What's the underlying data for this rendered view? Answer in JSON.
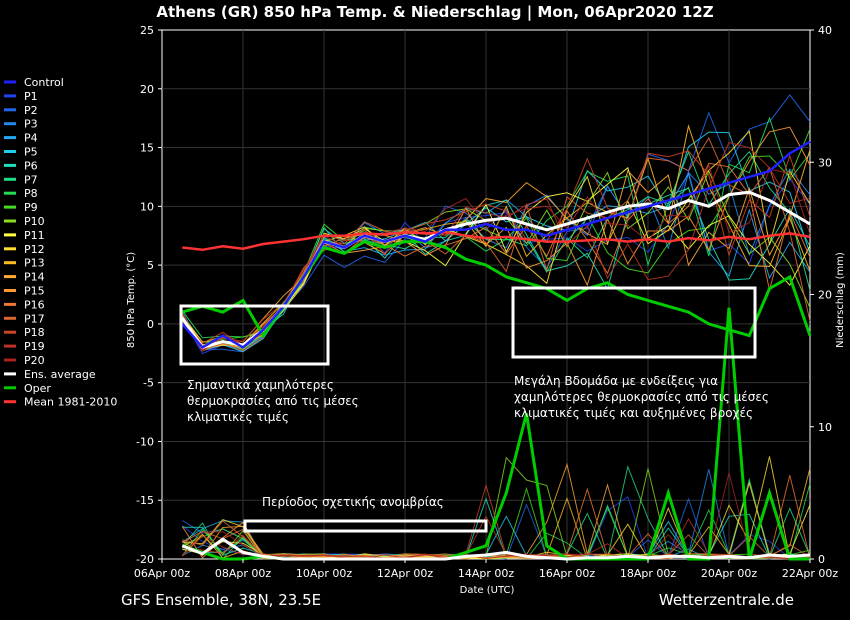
{
  "chart_data": {
    "type": "line",
    "title": "Athens  (GR)  850 hPa Temp. & Niederschlag | Mon, 06Apr2020 12Z",
    "xlabel": "Date (UTC)",
    "ylabel": "850 hPa Temp. (°C)",
    "y2label": "Niederschlag (mm)",
    "ylim": [
      -20,
      25
    ],
    "y2lim": [
      0,
      40
    ],
    "yticks": [
      "25",
      "20",
      "15",
      "10",
      "5",
      "0",
      "-5",
      "-10",
      "-15",
      "-20"
    ],
    "y2ticks": [
      "40",
      "30",
      "20",
      "10",
      "0"
    ],
    "xlim_days": [
      0,
      16
    ],
    "xticks": [
      "06Apr 00z",
      "08Apr 00z",
      "10Apr 00z",
      "12Apr 00z",
      "14Apr 00z",
      "16Apr 00z",
      "18Apr 00z",
      "20Apr 00z",
      "22Apr 00z"
    ],
    "legend_position": "left",
    "legend": [
      {
        "name": "Control",
        "color": "#2020ff"
      },
      {
        "name": "P1",
        "color": "#2244ee"
      },
      {
        "name": "P2",
        "color": "#2266ee"
      },
      {
        "name": "P3",
        "color": "#2288ee"
      },
      {
        "name": "P4",
        "color": "#22aaee"
      },
      {
        "name": "P5",
        "color": "#22ccee"
      },
      {
        "name": "P6",
        "color": "#22ddbb"
      },
      {
        "name": "P7",
        "color": "#22dd88"
      },
      {
        "name": "P8",
        "color": "#22dd55"
      },
      {
        "name": "P9",
        "color": "#44dd22"
      },
      {
        "name": "P10",
        "color": "#88dd22"
      },
      {
        "name": "P11",
        "color": "#ffff44"
      },
      {
        "name": "P12",
        "color": "#ffdd33"
      },
      {
        "name": "P13",
        "color": "#ffbb22"
      },
      {
        "name": "P14",
        "color": "#ffaa33"
      },
      {
        "name": "P15",
        "color": "#ff9933"
      },
      {
        "name": "P16",
        "color": "#ee7733"
      },
      {
        "name": "P17",
        "color": "#dd6633"
      },
      {
        "name": "P18",
        "color": "#cc4422"
      },
      {
        "name": "P19",
        "color": "#bb3322"
      },
      {
        "name": "P20",
        "color": "#aa2222"
      },
      {
        "name": "Ens. average",
        "color": "#ffffff"
      },
      {
        "name": "Oper",
        "color": "#00cc00"
      },
      {
        "name": "Mean 1981-2010",
        "color": "#ff3333"
      }
    ],
    "series": [
      {
        "name": "Ens. average",
        "x": [
          0.5,
          1,
          1.5,
          2,
          2.5,
          3,
          3.5,
          4,
          4.5,
          5,
          5.5,
          6,
          6.5,
          7,
          7.5,
          8,
          8.5,
          9,
          9.5,
          10,
          10.5,
          11,
          11.5,
          12,
          12.5,
          13,
          13.5,
          14,
          14.5,
          15,
          15.5,
          16
        ],
        "y": [
          0.5,
          -2,
          -1.5,
          -1.8,
          -0.5,
          1.5,
          4,
          7,
          6.5,
          7.5,
          7,
          7.5,
          7.2,
          8,
          8.5,
          8.8,
          9,
          8.5,
          8,
          8.5,
          9,
          9.5,
          10,
          10.2,
          9.8,
          10.5,
          10,
          11,
          11.2,
          10.5,
          9.5,
          8.5
        ]
      },
      {
        "name": "Oper",
        "x": [
          0.5,
          1,
          1.5,
          2,
          2.5,
          3,
          3.5,
          4,
          4.5,
          5,
          5.5,
          6,
          6.5,
          7,
          7.5,
          8,
          8.5,
          9,
          9.5,
          10,
          10.5,
          11,
          11.5,
          12,
          12.5,
          13,
          13.5,
          14,
          14.5,
          15,
          15.5,
          16
        ],
        "y": [
          1,
          1.5,
          1,
          2,
          -1,
          1.5,
          4,
          6.5,
          6,
          7,
          6.5,
          7,
          7,
          6.5,
          5.5,
          5,
          4,
          3.5,
          3,
          2,
          3,
          3.5,
          2.5,
          2,
          1.5,
          1,
          0,
          -0.5,
          -1,
          3,
          4,
          -1
        ]
      },
      {
        "name": "Mean 1981-2010",
        "x": [
          0.5,
          1,
          1.5,
          2,
          2.5,
          3,
          3.5,
          4,
          4.5,
          5,
          5.5,
          6,
          6.5,
          7,
          7.5,
          8,
          8.5,
          9,
          9.5,
          10,
          10.5,
          11,
          11.5,
          12,
          12.5,
          13,
          13.5,
          14,
          14.5,
          15,
          15.5,
          16
        ],
        "y": [
          6.5,
          6.3,
          6.6,
          6.4,
          6.8,
          7,
          7.2,
          7.5,
          7.5,
          7.7,
          7.6,
          7.8,
          7.7,
          7.8,
          7.5,
          7.3,
          7.4,
          7.2,
          7,
          7,
          7.1,
          7.2,
          7,
          7.2,
          7,
          7.3,
          7.1,
          7.4,
          7.2,
          7.5,
          7.7,
          7.4
        ]
      },
      {
        "name": "Control",
        "x": [
          0.5,
          1,
          1.5,
          2,
          2.5,
          3,
          3.5,
          4,
          4.5,
          5,
          5.5,
          6,
          6.5,
          7,
          7.5,
          8,
          8.5,
          9,
          9.5,
          10,
          10.5,
          11,
          11.5,
          12,
          12.5,
          13,
          13.5,
          14,
          14.5,
          15,
          15.5,
          16
        ],
        "y": [
          0,
          -2,
          -1,
          -2,
          -0.5,
          1.5,
          4,
          7,
          6.5,
          7.5,
          7,
          7.5,
          7,
          8,
          8,
          8.5,
          8,
          8,
          7.5,
          8,
          8.5,
          9,
          9.5,
          10,
          10.5,
          11,
          11.5,
          12,
          12.5,
          13,
          14.5,
          15.5
        ]
      }
    ],
    "precip_series": [
      {
        "name": "Oper",
        "x": [
          0.5,
          1,
          1.5,
          2,
          2.5,
          3,
          6,
          7,
          7.5,
          8,
          8.5,
          9,
          9.5,
          10,
          10.5,
          11,
          11.5,
          12,
          12.5,
          13,
          13.5,
          14,
          14.5,
          15,
          15.5,
          16
        ],
        "y": [
          1,
          0.5,
          0,
          0,
          0.2,
          0,
          0,
          0,
          0.5,
          1,
          5,
          11,
          1,
          0,
          0,
          0,
          0,
          0,
          5,
          0,
          0,
          19,
          0,
          5,
          0,
          0
        ]
      },
      {
        "name": "Ens. average",
        "x": [
          0.5,
          1,
          1.5,
          2,
          2.5,
          3,
          6,
          7,
          7.5,
          8,
          8.5,
          9,
          9.5,
          10,
          10.5,
          11,
          11.5,
          12,
          12.5,
          13,
          13.5,
          14,
          14.5,
          15,
          15.5,
          16
        ],
        "y": [
          1,
          0.4,
          1.5,
          0.5,
          0.2,
          0,
          0,
          0,
          0.2,
          0.3,
          0.5,
          0.2,
          0.1,
          0,
          0.1,
          0.1,
          0.2,
          0.1,
          0.2,
          0.2,
          0.1,
          0.2,
          0.1,
          0.3,
          0.2,
          0.3
        ]
      }
    ]
  },
  "annotations": {
    "left_text": [
      "Σημαντικά χαμηλότερες",
      "θερμοκρασίες από τις μέσες",
      "κλιματικές τιμές"
    ],
    "right_text": [
      "Μεγάλη Βδομάδα με ενδείξεις για",
      "χαμηλότερες θερμοκρασίες από τις μέσες",
      "κλιματικές τιμές και αυξημένες βροχές"
    ],
    "dry_text": "Περίοδος σχετικής ανομβρίας"
  },
  "footer": {
    "left": "GFS Ensemble, 38N, 23.5E",
    "right": "Wetterzentrale.de"
  }
}
